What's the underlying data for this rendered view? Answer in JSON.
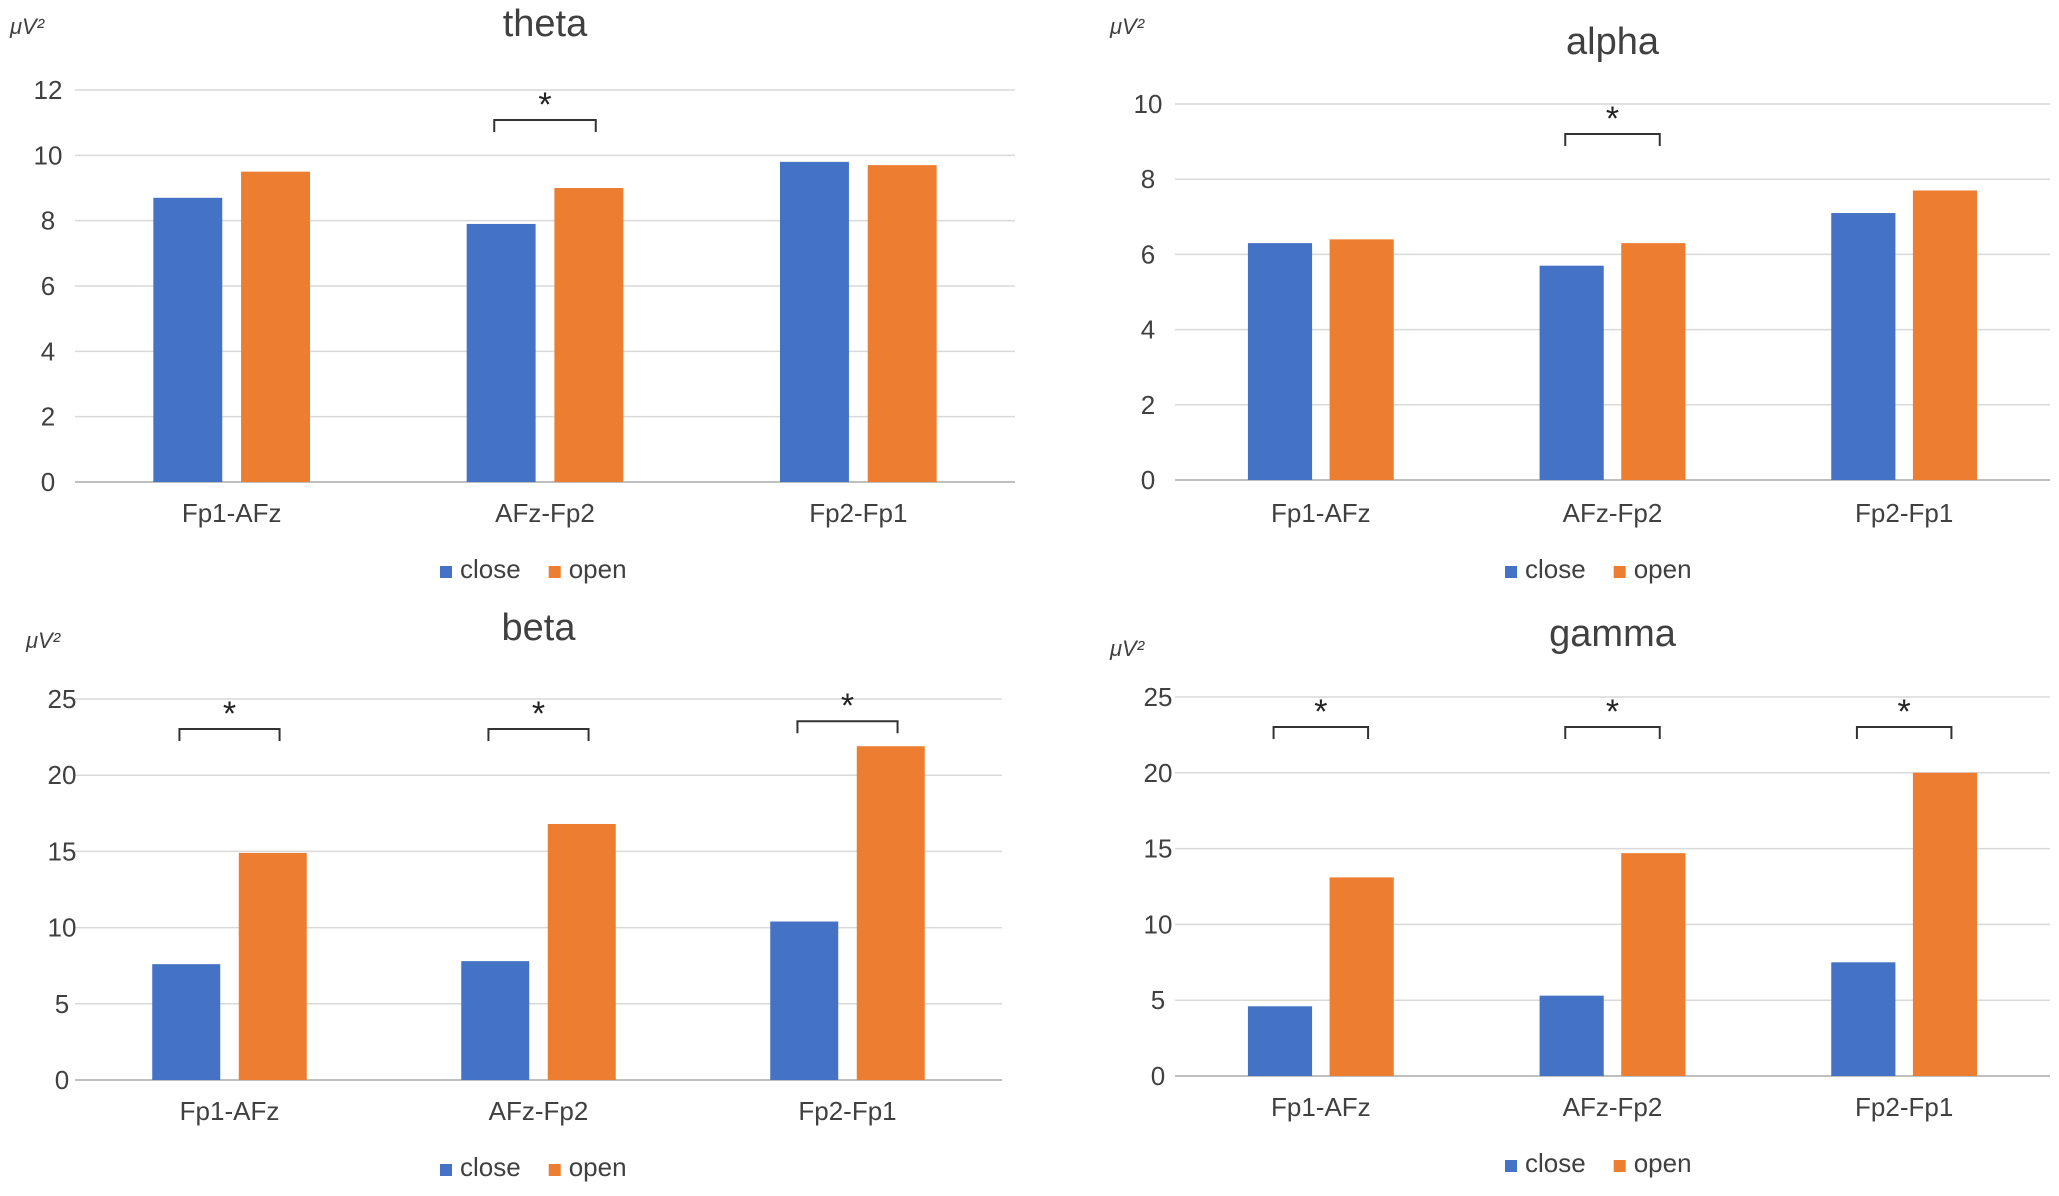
{
  "colors": {
    "close": "#4472C4",
    "open": "#ED7D31"
  },
  "chart_data": [
    {
      "type": "bar",
      "title": "theta",
      "unit": "μV²",
      "categories": [
        "Fp1-AFz",
        "AFz-Fp2",
        "Fp2-Fp1"
      ],
      "series": [
        {
          "name": "close",
          "values": [
            8.7,
            7.9,
            9.8
          ]
        },
        {
          "name": "open",
          "values": [
            9.5,
            9.0,
            9.7
          ]
        }
      ],
      "ylim": [
        0,
        12
      ],
      "yticks": [
        0,
        2,
        4,
        6,
        8,
        10,
        12
      ],
      "significance": [
        {
          "category": "AFz-Fp2",
          "label": "*"
        }
      ],
      "legend": "bottom"
    },
    {
      "type": "bar",
      "title": "alpha",
      "unit": "μV²",
      "categories": [
        "Fp1-AFz",
        "AFz-Fp2",
        "Fp2-Fp1"
      ],
      "series": [
        {
          "name": "close",
          "values": [
            6.3,
            5.7,
            7.1
          ]
        },
        {
          "name": "open",
          "values": [
            6.4,
            6.3,
            7.7
          ]
        }
      ],
      "ylim": [
        0,
        10
      ],
      "yticks": [
        0,
        2,
        4,
        6,
        8,
        10
      ],
      "significance": [
        {
          "category": "AFz-Fp2",
          "label": "*"
        }
      ],
      "legend": "bottom"
    },
    {
      "type": "bar",
      "title": "beta",
      "unit": "μV²",
      "categories": [
        "Fp1-AFz",
        "AFz-Fp2",
        "Fp2-Fp1"
      ],
      "series": [
        {
          "name": "close",
          "values": [
            7.6,
            7.8,
            10.4
          ]
        },
        {
          "name": "open",
          "values": [
            14.9,
            16.8,
            21.9
          ]
        }
      ],
      "ylim": [
        0,
        25
      ],
      "yticks": [
        0,
        5,
        10,
        15,
        20,
        25
      ],
      "significance": [
        {
          "category": "Fp1-AFz",
          "label": "*"
        },
        {
          "category": "AFz-Fp2",
          "label": "*"
        },
        {
          "category": "Fp2-Fp1",
          "label": "*"
        }
      ],
      "legend": "bottom"
    },
    {
      "type": "bar",
      "title": "gamma",
      "unit": "μV²",
      "categories": [
        "Fp1-AFz",
        "AFz-Fp2",
        "Fp2-Fp1"
      ],
      "series": [
        {
          "name": "close",
          "values": [
            4.6,
            5.3,
            7.5
          ]
        },
        {
          "name": "open",
          "values": [
            13.1,
            14.7,
            20.0
          ]
        }
      ],
      "ylim": [
        0,
        25
      ],
      "yticks": [
        0,
        5,
        10,
        15,
        20,
        25
      ],
      "significance": [
        {
          "category": "Fp1-AFz",
          "label": "*"
        },
        {
          "category": "AFz-Fp2",
          "label": "*"
        },
        {
          "category": "Fp2-Fp1",
          "label": "*"
        }
      ],
      "legend": "bottom"
    }
  ]
}
